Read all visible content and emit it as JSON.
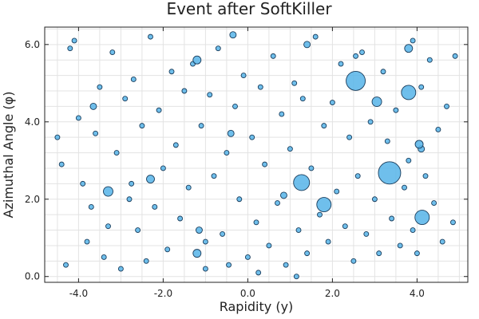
{
  "chart_data": {
    "type": "scatter",
    "title": "Event after SoftKiller",
    "xlabel": "Rapidity (y)",
    "ylabel": "Azimuthal Angle (φ)",
    "xlim": [
      -4.8,
      5.2
    ],
    "ylim": [
      -0.15,
      6.45
    ],
    "xticks": [
      -4,
      -2,
      0,
      2,
      4
    ],
    "xtick_labels": [
      "-4.0",
      "-2.0",
      "0.0",
      "2.0",
      "4.0"
    ],
    "yticks": [
      0,
      2,
      4,
      6
    ],
    "ytick_labels": [
      "0.0",
      "2.0",
      "4.0",
      "6.0"
    ],
    "grid": true,
    "legend": "none",
    "marker_color": "#56b4e9",
    "points": [
      [
        2.55,
        5.06,
        12
      ],
      [
        3.35,
        2.68,
        14
      ],
      [
        1.27,
        2.43,
        10
      ],
      [
        4.12,
        1.53,
        9
      ],
      [
        1.8,
        1.86,
        9
      ],
      [
        3.8,
        4.76,
        9
      ],
      [
        3.05,
        4.52,
        6
      ],
      [
        -3.3,
        2.2,
        6
      ],
      [
        -2.3,
        2.52,
        5
      ],
      [
        4.05,
        3.42,
        5
      ],
      [
        -1.2,
        0.6,
        5
      ],
      [
        -1.2,
        5.6,
        5
      ],
      [
        3.8,
        5.9,
        5
      ],
      [
        -3.65,
        4.4,
        4
      ],
      [
        -1.15,
        1.2,
        4
      ],
      [
        0.85,
        2.1,
        4
      ],
      [
        -0.4,
        3.7,
        4
      ],
      [
        4.1,
        3.3,
        4
      ],
      [
        1.4,
        6.0,
        4
      ],
      [
        -0.35,
        6.25,
        4
      ],
      [
        -4.5,
        3.6,
        3
      ],
      [
        -4.4,
        2.9,
        3
      ],
      [
        -4.2,
        5.9,
        3
      ],
      [
        -4.1,
        6.1,
        3
      ],
      [
        -4.0,
        4.1,
        3
      ],
      [
        -3.8,
        0.9,
        3
      ],
      [
        -3.7,
        1.8,
        3
      ],
      [
        -3.6,
        3.7,
        3
      ],
      [
        -3.5,
        4.9,
        3
      ],
      [
        -3.4,
        0.5,
        3
      ],
      [
        -3.3,
        1.3,
        3
      ],
      [
        -3.2,
        5.8,
        3
      ],
      [
        -3.1,
        3.2,
        3
      ],
      [
        -3.0,
        0.2,
        3
      ],
      [
        -2.9,
        4.6,
        3
      ],
      [
        -2.8,
        2.0,
        3
      ],
      [
        -2.7,
        5.1,
        3
      ],
      [
        -2.6,
        1.2,
        3
      ],
      [
        -2.5,
        3.9,
        3
      ],
      [
        -2.4,
        0.4,
        3
      ],
      [
        -2.3,
        6.2,
        3
      ],
      [
        -2.2,
        1.8,
        3
      ],
      [
        -2.1,
        4.3,
        3
      ],
      [
        -2.0,
        2.8,
        3
      ],
      [
        -1.9,
        0.7,
        3
      ],
      [
        -1.8,
        5.3,
        3
      ],
      [
        -1.7,
        3.4,
        3
      ],
      [
        -1.6,
        1.5,
        3
      ],
      [
        -1.5,
        4.8,
        3
      ],
      [
        -1.4,
        2.3,
        3
      ],
      [
        -1.3,
        5.5,
        3
      ],
      [
        -1.1,
        3.9,
        3
      ],
      [
        -1.0,
        0.9,
        3
      ],
      [
        -0.9,
        4.7,
        3
      ],
      [
        -0.8,
        2.6,
        3
      ],
      [
        -0.7,
        5.9,
        3
      ],
      [
        -0.6,
        1.1,
        3
      ],
      [
        -0.5,
        3.2,
        3
      ],
      [
        -0.45,
        0.3,
        3
      ],
      [
        -0.3,
        4.4,
        3
      ],
      [
        -0.2,
        2.0,
        3
      ],
      [
        -0.1,
        5.2,
        3
      ],
      [
        0.0,
        0.5,
        3
      ],
      [
        0.1,
        3.6,
        3
      ],
      [
        0.2,
        1.4,
        3
      ],
      [
        0.3,
        4.9,
        3
      ],
      [
        0.4,
        2.9,
        3
      ],
      [
        0.5,
        0.8,
        3
      ],
      [
        0.6,
        5.7,
        3
      ],
      [
        0.7,
        1.9,
        3
      ],
      [
        0.8,
        4.2,
        3
      ],
      [
        0.9,
        0.3,
        3
      ],
      [
        1.0,
        3.3,
        3
      ],
      [
        1.1,
        5.0,
        3
      ],
      [
        1.2,
        1.2,
        3
      ],
      [
        1.3,
        4.6,
        3
      ],
      [
        1.4,
        0.6,
        3
      ],
      [
        1.5,
        2.8,
        3
      ],
      [
        1.6,
        6.2,
        3
      ],
      [
        1.7,
        1.6,
        3
      ],
      [
        1.8,
        3.9,
        3
      ],
      [
        1.9,
        0.9,
        3
      ],
      [
        2.0,
        4.5,
        3
      ],
      [
        2.1,
        2.2,
        3
      ],
      [
        2.2,
        5.5,
        3
      ],
      [
        2.3,
        1.3,
        3
      ],
      [
        2.4,
        3.6,
        3
      ],
      [
        2.5,
        0.4,
        3
      ],
      [
        2.6,
        2.6,
        3
      ],
      [
        2.7,
        5.8,
        3
      ],
      [
        2.8,
        1.1,
        3
      ],
      [
        2.9,
        4.0,
        3
      ],
      [
        3.0,
        2.0,
        3
      ],
      [
        3.1,
        0.6,
        3
      ],
      [
        3.2,
        5.3,
        3
      ],
      [
        3.3,
        3.5,
        3
      ],
      [
        3.4,
        1.5,
        3
      ],
      [
        3.5,
        4.3,
        3
      ],
      [
        3.6,
        0.8,
        3
      ],
      [
        3.7,
        2.3,
        3
      ],
      [
        3.8,
        3.0,
        3
      ],
      [
        3.9,
        1.2,
        3
      ],
      [
        4.0,
        0.6,
        3
      ],
      [
        4.1,
        4.9,
        3
      ],
      [
        4.2,
        2.6,
        3
      ],
      [
        4.3,
        5.6,
        3
      ],
      [
        4.4,
        1.9,
        3
      ],
      [
        4.5,
        3.8,
        3
      ],
      [
        4.6,
        0.9,
        3
      ],
      [
        4.7,
        4.4,
        3
      ],
      [
        4.85,
        1.4,
        3
      ],
      [
        4.9,
        5.7,
        3
      ],
      [
        -4.3,
        0.3,
        3
      ],
      [
        -3.9,
        2.4,
        3
      ],
      [
        1.15,
        0.0,
        3
      ],
      [
        -1.0,
        0.2,
        3
      ],
      [
        0.25,
        0.1,
        3
      ],
      [
        2.55,
        5.7,
        3
      ],
      [
        3.9,
        6.1,
        3
      ],
      [
        -2.75,
        2.4,
        3
      ]
    ]
  }
}
